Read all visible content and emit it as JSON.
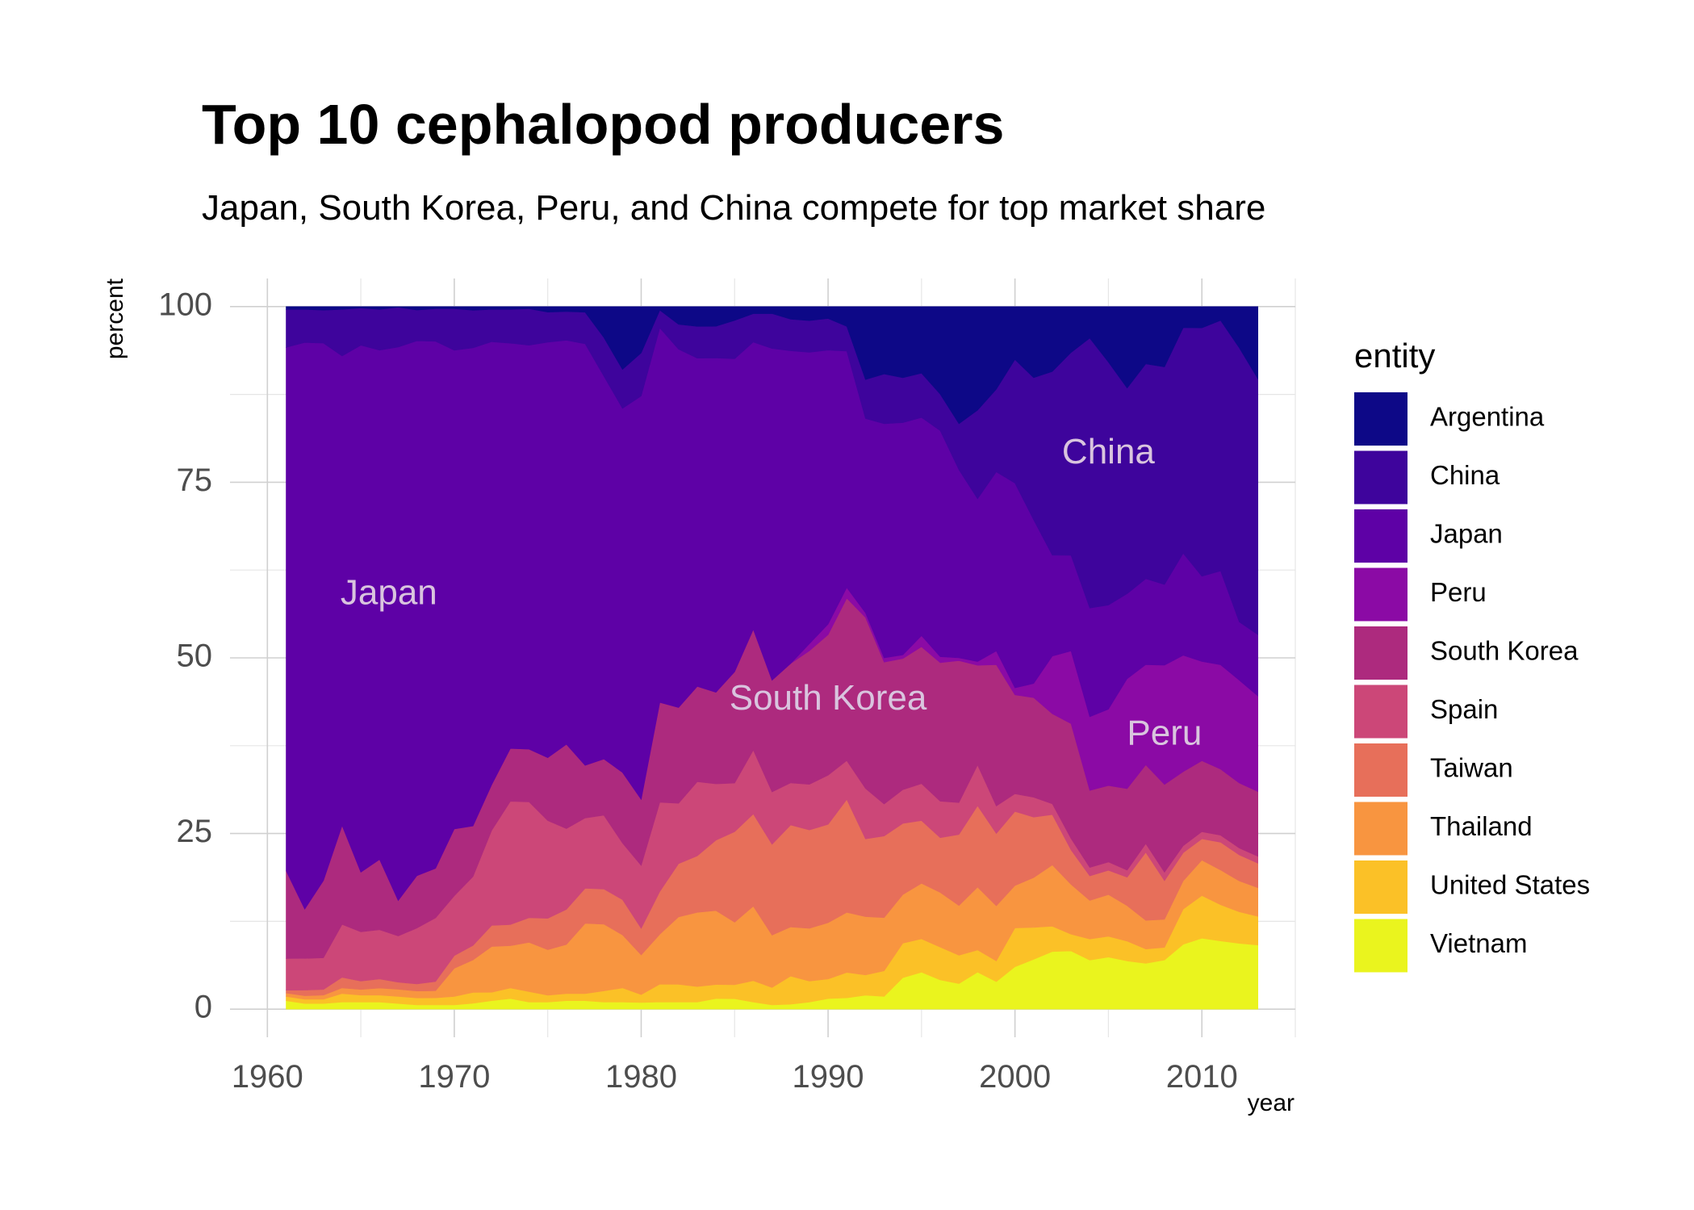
{
  "chart_data": {
    "type": "area",
    "stacked": true,
    "percent_stacked": true,
    "title": "Top 10 cephalopod producers",
    "subtitle": "Japan, South Korea, Peru, and China compete for top market share",
    "xlabel": "year",
    "ylabel": "percent",
    "xlim": [
      1958,
      2015
    ],
    "ylim": [
      -4,
      104
    ],
    "x_ticks": [
      "1960",
      "1970",
      "1980",
      "1990",
      "2000",
      "2010"
    ],
    "y_ticks": [
      "0",
      "25",
      "50",
      "75",
      "100"
    ],
    "grid": true,
    "legend": {
      "title": "entity",
      "placement": "right"
    },
    "annotations": [
      {
        "text": "Japan",
        "x": 1966.5,
        "y": 59
      },
      {
        "text": "South Korea",
        "x": 1990,
        "y": 44
      },
      {
        "text": "China",
        "x": 2005,
        "y": 79
      },
      {
        "text": "Peru",
        "x": 2008,
        "y": 39
      }
    ],
    "x": [
      1961,
      1962,
      1963,
      1964,
      1965,
      1966,
      1967,
      1968,
      1969,
      1970,
      1971,
      1972,
      1973,
      1974,
      1975,
      1976,
      1977,
      1978,
      1979,
      1980,
      1981,
      1982,
      1983,
      1984,
      1985,
      1986,
      1987,
      1988,
      1989,
      1990,
      1991,
      1992,
      1993,
      1994,
      1995,
      1996,
      1997,
      1998,
      1999,
      2000,
      2001,
      2002,
      2003,
      2004,
      2005,
      2006,
      2007,
      2008,
      2009,
      2010,
      2011,
      2012,
      2013
    ],
    "series": [
      {
        "name": "Vietnam",
        "color": "#eaf41e",
        "values": [
          1.2,
          0.8,
          0.8,
          1,
          1,
          1,
          0.8,
          0.6,
          0.6,
          0.6,
          0.8,
          1.2,
          1.5,
          1,
          1,
          1.2,
          1.2,
          1,
          1,
          1,
          1,
          1,
          1,
          1.5,
          1.5,
          1,
          0.6,
          0.7,
          1,
          1.5,
          1.6,
          1.8,
          1.8,
          4.2,
          5,
          4,
          3.6,
          5,
          4,
          6,
          7,
          8,
          7.6,
          7,
          7.5,
          6.8,
          6.4,
          7,
          9.2,
          10,
          9.8,
          9.6,
          9.4
        ]
      },
      {
        "name": "United States",
        "color": "#fbc127",
        "values": [
          0.6,
          0.6,
          0.6,
          1.2,
          1,
          1,
          1,
          1,
          1,
          1.2,
          1.5,
          1.2,
          1.5,
          1.5,
          1,
          1,
          1,
          1.6,
          2,
          1.2,
          2.5,
          2.5,
          2.2,
          2,
          2,
          3,
          2.5,
          4,
          3,
          2.8,
          3.6,
          2.6,
          3.6,
          4.6,
          4.5,
          4.5,
          4,
          3,
          3,
          5.5,
          4.5,
          3.5,
          2.2,
          3,
          3,
          2.8,
          2,
          1.8,
          5,
          6,
          5.2,
          4.6,
          4.2
        ]
      },
      {
        "name": "Thailand",
        "color": "#f89540",
        "values": [
          0.5,
          0.5,
          0.6,
          0.8,
          0.8,
          1,
          1,
          1,
          1,
          4,
          4.5,
          6.5,
          6,
          7,
          6.5,
          7,
          10,
          9.5,
          7.5,
          6,
          7,
          9.5,
          10.5,
          10.5,
          9,
          10.5,
          7.5,
          7,
          7.5,
          8,
          8.5,
          7.5,
          7.5,
          6.5,
          7.5,
          7.5,
          7,
          8.5,
          8,
          6,
          7,
          8.5,
          6.5,
          5.5,
          6,
          5,
          4,
          4,
          4,
          5,
          5,
          4.5,
          4.2
        ]
      },
      {
        "name": "Taiwan",
        "color": "#e76f5a",
        "values": [
          0.4,
          0.8,
          0.8,
          1.5,
          1.2,
          1.3,
          1,
          1,
          1.3,
          1.8,
          2,
          3,
          3,
          3.5,
          4.5,
          5,
          5,
          5,
          5,
          4,
          6,
          7.5,
          8,
          10,
          13,
          13,
          13,
          14.5,
          14,
          14,
          16,
          10,
          11.5,
          9.5,
          8.5,
          7.5,
          10,
          11,
          10.5,
          10.5,
          8.5,
          7,
          4.5,
          3.5,
          3.5,
          4,
          9.5,
          5.5,
          4,
          3,
          4,
          3.8,
          3.6
        ]
      },
      {
        "name": "Spain",
        "color": "#cc4778",
        "values": [
          4.5,
          4.5,
          4.5,
          7.5,
          7,
          7,
          6.5,
          8,
          9,
          8.5,
          9.5,
          13.5,
          17.5,
          16.5,
          14,
          11.5,
          10,
          10.5,
          8,
          9.5,
          12.5,
          8.5,
          10.5,
          8,
          7,
          9,
          7.5,
          6,
          6.5,
          7,
          5.5,
          6.5,
          4.5,
          4.5,
          5,
          5,
          4.5,
          5.5,
          4,
          2.5,
          2.8,
          1.5,
          1.5,
          1.2,
          1.2,
          1,
          1.2,
          1.2,
          1,
          1,
          1,
          1,
          1
        ]
      },
      {
        "name": "South Korea",
        "color": "#ad2a7e",
        "values": [
          12.5,
          7,
          11,
          14,
          8.5,
          10,
          5,
          7.5,
          7,
          9.5,
          7,
          6.5,
          7.5,
          7.5,
          9,
          12,
          7.5,
          8,
          10,
          10,
          14,
          13.5,
          13.5,
          13,
          16,
          17,
          16,
          17,
          19,
          20,
          23,
          22,
          20,
          17.5,
          18.5,
          19,
          20,
          13.5,
          20.5,
          14,
          14,
          12.5,
          15,
          11,
          11,
          11.5,
          11,
          12.5,
          10.5,
          10,
          9.5,
          9.5,
          9.5
        ]
      },
      {
        "name": "Peru",
        "color": "#8b0aa5",
        "values": [
          0,
          0,
          0,
          0,
          0,
          0,
          0,
          0,
          0,
          0,
          0,
          0,
          0,
          0,
          0,
          0,
          0,
          0,
          0,
          0,
          0,
          0,
          0,
          0,
          0,
          0,
          0,
          0,
          1,
          1.5,
          1.5,
          0.6,
          0.6,
          0.5,
          1.5,
          0.8,
          0.4,
          0.5,
          2,
          1,
          2,
          8,
          9.5,
          10.5,
          11,
          15.5,
          14,
          17,
          16.5,
          14,
          15,
          15,
          14
        ]
      },
      {
        "name": "Japan",
        "color": "#5e01a6",
        "values": [
          74.5,
          80.5,
          76.5,
          66.5,
          75,
          72.5,
          78,
          76.5,
          74.5,
          68,
          66,
          63,
          57.5,
          57.5,
          59.5,
          57.5,
          60,
          54.5,
          51.5,
          61,
          52.5,
          50.5,
          46.5,
          47.5,
          45,
          40.5,
          47.5,
          44.5,
          41.5,
          39,
          33.5,
          25,
          33,
          31,
          29.5,
          31,
          26.5,
          22,
          26,
          29,
          23,
          14,
          12.5,
          15.5,
          15,
          12,
          12,
          11.5,
          14.5,
          12,
          13.5,
          8.5,
          9
        ]
      },
      {
        "name": "China",
        "color": "#3e049c",
        "values": [
          5.4,
          4.7,
          4.7,
          6.6,
          5.3,
          5.8,
          5.6,
          4.4,
          4.6,
          5.9,
          5.2,
          4.6,
          4.8,
          5.2,
          4.3,
          4.1,
          4.5,
          5.5,
          5.5,
          6.5,
          2.5,
          3.5,
          4.5,
          4.5,
          5.5,
          4,
          5,
          4.5,
          4.5,
          4.5,
          3.5,
          5,
          7,
          6,
          6,
          5,
          6.5,
          12,
          12,
          17.5,
          20,
          25.5,
          26.5,
          38.5,
          35,
          29,
          30,
          31,
          32,
          35,
          36,
          40,
          37.5
        ]
      },
      {
        "name": "Argentina",
        "color": "#0d0887",
        "values": [
          0.4,
          0.4,
          0.5,
          0.4,
          0.2,
          0.4,
          0.1,
          0.5,
          0.3,
          0.3,
          0.5,
          0.4,
          0.4,
          0.3,
          0.8,
          0.7,
          0.8,
          4.4,
          8.9,
          7,
          0.5,
          2.5,
          2.8,
          2.8,
          2,
          1,
          1,
          1.8,
          2,
          1.7,
          2.8,
          9.4,
          9.5,
          9.5,
          9,
          12,
          16.5,
          14,
          12,
          7.5,
          10,
          9,
          6,
          4.5,
          8,
          11.5,
          8,
          8.6,
          3,
          3,
          2,
          6,
          10.6
        ]
      }
    ]
  }
}
